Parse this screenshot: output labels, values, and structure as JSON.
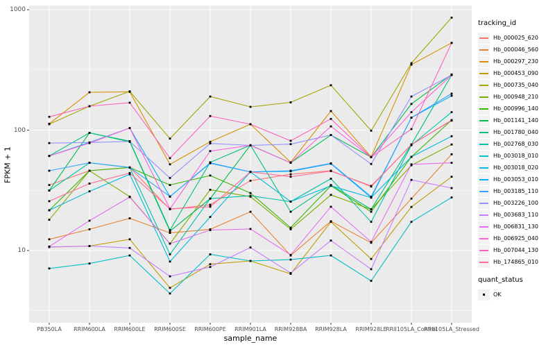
{
  "chart_data": {
    "type": "line",
    "title": "",
    "xlabel": "sample_name",
    "ylabel": "FPKM + 1",
    "y_scale": "log10",
    "y_ticks": [
      10,
      100,
      1000
    ],
    "y_tick_labels": [
      "10",
      "100",
      "1000"
    ],
    "ylim": [
      3.5,
      1000
    ],
    "grid": "on",
    "legend_position": "right",
    "panel_background": "#EBEBEB",
    "gridline_color": "#FFFFFF",
    "point_marker": "small-black-square",
    "point_color": "#000000",
    "categories": [
      "PB350LA",
      "RRIM600LA",
      "RRIM600LE",
      "RRIM600SE",
      "RRIM600PE",
      "RRIM901LA",
      "RRIM928BA",
      "RRIM928LA",
      "RRIM928LE",
      "RRII105LA_Control",
      "RRII105LA_Stressed"
    ],
    "series": [
      {
        "name": "Hb_000025_620",
        "color": "#F8766D",
        "values": [
          35,
          46,
          49,
          22,
          24,
          38,
          43,
          46,
          34,
          76,
          120
        ]
      },
      {
        "name": "Hb_000046_560",
        "color": "#EA8331",
        "values": [
          12.4,
          15,
          18.5,
          14,
          15,
          21,
          9.1,
          17.5,
          11.6,
          27,
          63
        ]
      },
      {
        "name": "Hb_000297_230",
        "color": "#D89000",
        "values": [
          113,
          206,
          208,
          52,
          80,
          112,
          54,
          144,
          60,
          350,
          530
        ]
      },
      {
        "name": "Hb_000453_090",
        "color": "#C09B00",
        "values": [
          10.7,
          10.9,
          12.4,
          4.9,
          7.7,
          8.2,
          6.4,
          17.3,
          8.5,
          23,
          41
        ]
      },
      {
        "name": "Hb_000735_040",
        "color": "#A3A500",
        "values": [
          112,
          158,
          210,
          85,
          190,
          156,
          170,
          236,
          99,
          360,
          860
        ]
      },
      {
        "name": "Hb_000948_210",
        "color": "#7CAE00",
        "values": [
          18,
          46,
          28,
          11.4,
          32,
          28,
          15,
          29,
          22,
          51,
          76
        ]
      },
      {
        "name": "Hb_000996_140",
        "color": "#39B600",
        "values": [
          21.6,
          46,
          49,
          35,
          42,
          30,
          15.5,
          34.5,
          21,
          60,
          121
        ]
      },
      {
        "name": "Hb_001141_140",
        "color": "#00BB4E",
        "values": [
          31.5,
          95,
          80,
          14.5,
          27,
          75,
          53.5,
          91,
          59.5,
          165,
          290
        ]
      },
      {
        "name": "Hb_001780_040",
        "color": "#00BF7D",
        "values": [
          61,
          95,
          81,
          14.8,
          54,
          75,
          21,
          35,
          22,
          76,
          287
        ]
      },
      {
        "name": "Hb_002768_030",
        "color": "#00C1A3",
        "values": [
          31.5,
          53.5,
          49,
          9.3,
          27,
          28.5,
          25.5,
          39.5,
          17.3,
          75,
          141
        ]
      },
      {
        "name": "Hb_003018_010",
        "color": "#00BFC4",
        "values": [
          7.1,
          7.8,
          9.1,
          4.4,
          9.3,
          8.2,
          8.4,
          9.1,
          5.6,
          17.3,
          27.6
        ]
      },
      {
        "name": "Hb_003018_020",
        "color": "#00BAE0",
        "values": [
          21.6,
          31,
          43,
          8.1,
          19,
          45,
          25.5,
          34.5,
          27.5,
          60,
          89
        ]
      },
      {
        "name": "Hb_003053_010",
        "color": "#00B0F6",
        "values": [
          61,
          79,
          104,
          28,
          53.5,
          45,
          45.5,
          52.6,
          27.5,
          127,
          193
        ]
      },
      {
        "name": "Hb_003185_110",
        "color": "#35A2FF",
        "values": [
          46,
          53.5,
          49,
          28.1,
          53,
          45,
          46,
          53,
          28,
          127,
          201
        ]
      },
      {
        "name": "Hb_003226_100",
        "color": "#9590FF",
        "values": [
          78,
          79,
          80.5,
          40,
          77.5,
          74.7,
          76.5,
          91,
          52.3,
          190,
          287
        ]
      },
      {
        "name": "Hb_003683_110",
        "color": "#C77CFF",
        "values": [
          10.7,
          10.9,
          10.5,
          6.1,
          7.3,
          10.6,
          6.5,
          12.1,
          7,
          38.6,
          33
        ]
      },
      {
        "name": "Hb_006831_130",
        "color": "#E76BF3",
        "values": [
          10.8,
          17.7,
          27.8,
          11.4,
          14.8,
          15.1,
          9.2,
          23.1,
          11.8,
          52,
          53.5
        ]
      },
      {
        "name": "Hb_006925_040",
        "color": "#FA62DB",
        "values": [
          61,
          78,
          104,
          22.2,
          67,
          74.7,
          53.5,
          107.5,
          59.5,
          141,
          287
        ]
      },
      {
        "name": "Hb_007044_130",
        "color": "#FF62BC",
        "values": [
          129,
          158,
          169,
          58.5,
          131,
          112,
          81.5,
          124,
          59.5,
          102,
          530
        ]
      },
      {
        "name": "Hb_174865_010",
        "color": "#FF6A98",
        "values": [
          25.7,
          36,
          44,
          22.2,
          23.1,
          45,
          41,
          45.7,
          34.4,
          75.5,
          121
        ]
      }
    ]
  },
  "legend": {
    "tracking_title": "tracking_id",
    "quant_title": "quant_status",
    "quant_items": [
      {
        "label": "OK",
        "marker": "black-square"
      }
    ]
  }
}
